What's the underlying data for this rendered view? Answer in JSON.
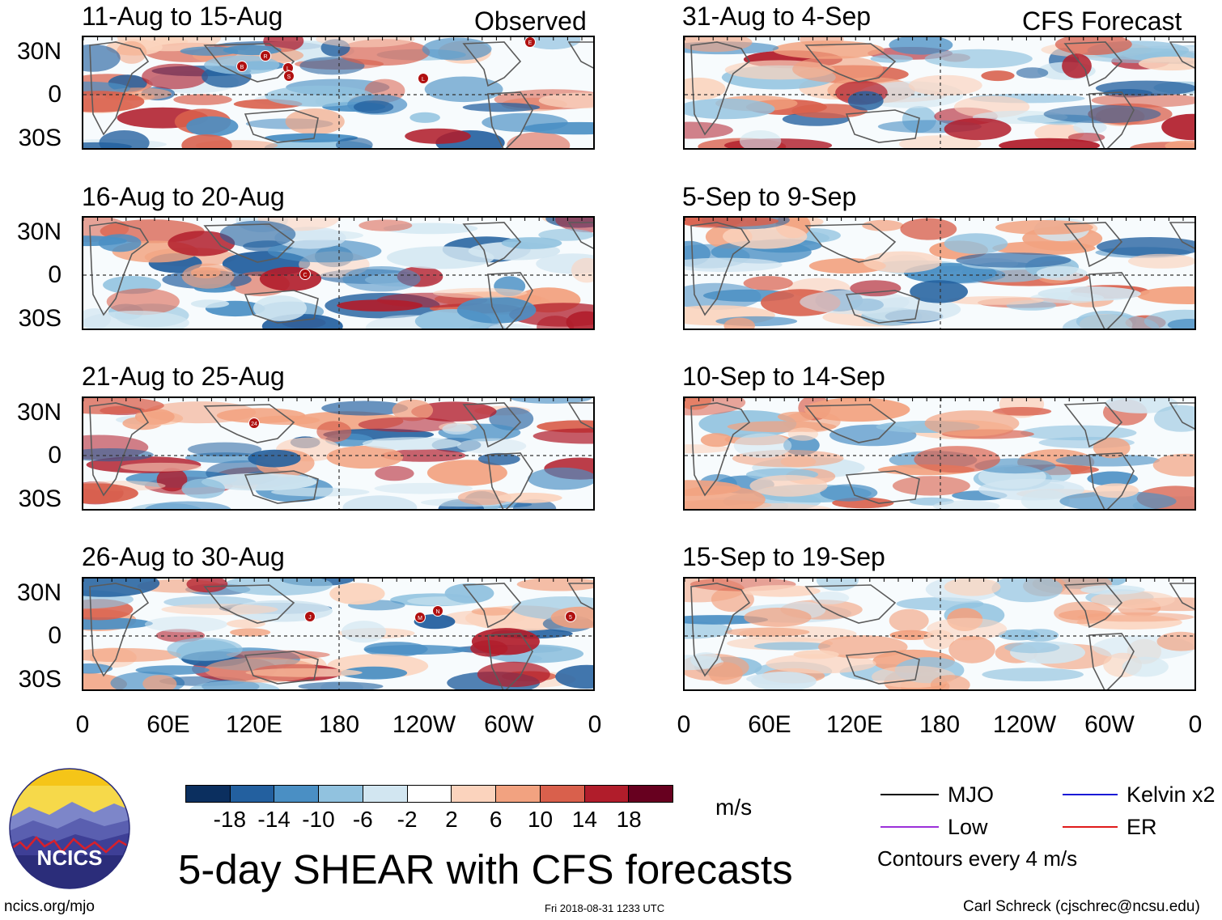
{
  "header": {
    "observed_label": "Observed",
    "forecast_label": "CFS Forecast"
  },
  "panels": [
    {
      "title": "11-Aug to 15-Aug",
      "column": "observed",
      "row": 0
    },
    {
      "title": "16-Aug to 20-Aug",
      "column": "observed",
      "row": 1
    },
    {
      "title": "21-Aug to 25-Aug",
      "column": "observed",
      "row": 2
    },
    {
      "title": "26-Aug to 30-Aug",
      "column": "observed",
      "row": 3
    },
    {
      "title": "31-Aug to 4-Sep",
      "column": "forecast",
      "row": 0
    },
    {
      "title": "5-Sep to 9-Sep",
      "column": "forecast",
      "row": 1
    },
    {
      "title": "10-Sep to 14-Sep",
      "column": "forecast",
      "row": 2
    },
    {
      "title": "15-Sep to 19-Sep",
      "column": "forecast",
      "row": 3
    }
  ],
  "lat_labels": [
    "30N",
    "0",
    "30S"
  ],
  "lon_labels": [
    "0",
    "60E",
    "120E",
    "180",
    "120W",
    "60W",
    "0"
  ],
  "storm_markers": [
    {
      "panel": 0,
      "labels": [
        "B",
        "R",
        "L",
        "S",
        "E",
        "L"
      ]
    },
    {
      "panel": 1,
      "labels": [
        "C"
      ]
    },
    {
      "panel": 2,
      "labels": [
        "24"
      ]
    },
    {
      "panel": 3,
      "labels": [
        "J",
        "M",
        "N",
        "5"
      ]
    }
  ],
  "colorbar": {
    "colors": [
      "#0b2f5f",
      "#23609f",
      "#4a8fc4",
      "#91c2df",
      "#d2e6f1",
      "#ffffff",
      "#fbd3bd",
      "#f2a280",
      "#d9604c",
      "#b11d2b",
      "#67001f"
    ],
    "ticks": [
      "-18",
      "-14",
      "-10",
      "-6",
      "-2",
      "2",
      "6",
      "10",
      "14",
      "18"
    ],
    "units": "m/s"
  },
  "title": "5-day SHEAR with CFS forecasts",
  "legend": {
    "items": [
      {
        "label": "MJO",
        "color": "#000000"
      },
      {
        "label": "Kelvin x2",
        "color": "#1a1ad6"
      },
      {
        "label": "Low",
        "color": "#9b30d9"
      },
      {
        "label": "ER",
        "color": "#e01b1b"
      }
    ],
    "contour_note": "Contours every 4 m/s"
  },
  "footer": {
    "url": "ncics.org/mjo",
    "timestamp": "Fri 2018-08-31 1233 UTC",
    "credit": "Carl Schreck (cjschrec@ncsu.edu)"
  },
  "logo": {
    "text": "NCICS"
  }
}
